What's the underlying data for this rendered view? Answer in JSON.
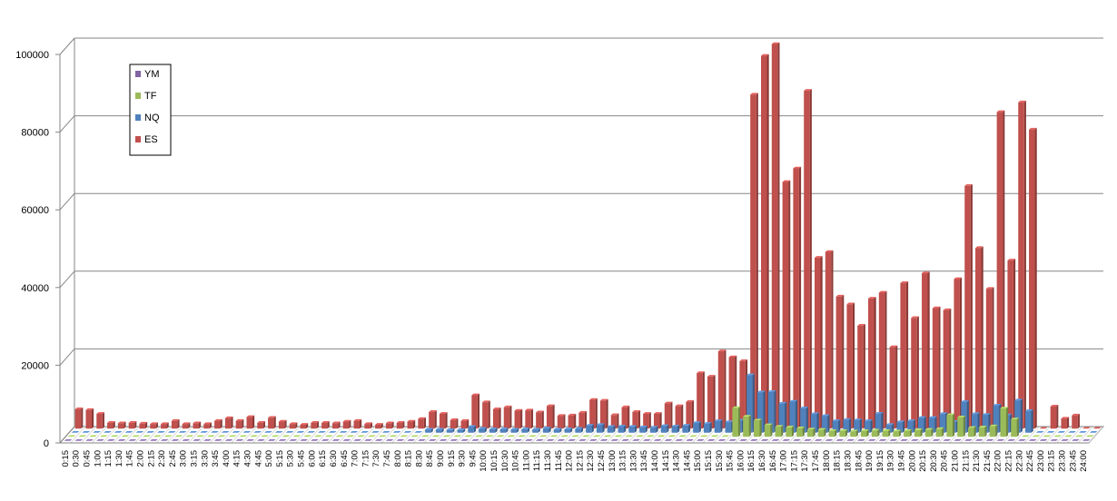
{
  "chart_data": {
    "type": "bar",
    "title": "",
    "xlabel": "",
    "ylabel": "",
    "ylim": [
      0,
      100000
    ],
    "yticks": [
      0,
      20000,
      40000,
      60000,
      80000,
      100000
    ],
    "grid": true,
    "legend_position": "top-left",
    "categories": [
      "0:15",
      "0:30",
      "0:45",
      "1:00",
      "1:15",
      "1:30",
      "1:45",
      "2:00",
      "2:15",
      "2:30",
      "2:45",
      "3:00",
      "3:15",
      "3:30",
      "3:45",
      "4:00",
      "4:15",
      "4:30",
      "4:45",
      "5:00",
      "5:15",
      "5:30",
      "5:45",
      "6:00",
      "6:15",
      "6:30",
      "6:45",
      "7:00",
      "7:15",
      "7:30",
      "7:45",
      "8:00",
      "8:15",
      "8:30",
      "8:45",
      "9:00",
      "9:15",
      "9:30",
      "9:45",
      "10:00",
      "10:15",
      "10:30",
      "10:45",
      "11:00",
      "11:15",
      "11:30",
      "11:45",
      "12:00",
      "12:15",
      "12:30",
      "12:45",
      "13:00",
      "13:15",
      "13:30",
      "13:45",
      "14:00",
      "14:15",
      "14:30",
      "14:45",
      "15:00",
      "15:15",
      "15:30",
      "15:45",
      "16:00",
      "16:15",
      "16:30",
      "16:45",
      "17:00",
      "17:15",
      "17:30",
      "17:45",
      "18:00",
      "18:15",
      "18:30",
      "18:45",
      "19:00",
      "19:15",
      "19:30",
      "19:45",
      "20:00",
      "20:15",
      "20:30",
      "20:45",
      "21:00",
      "21:15",
      "21:30",
      "21:45",
      "22:00",
      "22:15",
      "22:30",
      "22:45",
      "23:00",
      "23:15",
      "23:30",
      "23:45",
      "24:00"
    ],
    "series": [
      {
        "name": "ES",
        "color": "#c0504d",
        "values": [
          5000,
          4800,
          3800,
          1500,
          1400,
          1500,
          1300,
          1200,
          1200,
          2000,
          1200,
          1400,
          1200,
          2000,
          2700,
          2000,
          3000,
          1500,
          2800,
          1800,
          1200,
          1000,
          1500,
          1500,
          1400,
          1800,
          2000,
          1200,
          1000,
          1400,
          1500,
          1800,
          2500,
          4300,
          3800,
          2200,
          2000,
          8600,
          6800,
          5000,
          5500,
          4600,
          4700,
          4200,
          5800,
          3300,
          3400,
          4100,
          7400,
          7200,
          3500,
          5500,
          4300,
          3800,
          3800,
          6500,
          5800,
          6900,
          14300,
          13400,
          19900,
          18400,
          17400,
          86000,
          96000,
          99000,
          63500,
          67000,
          87000,
          44000,
          45500,
          34000,
          32000,
          26500,
          33500,
          35000,
          21000,
          37500,
          28500,
          40000,
          31000,
          30500,
          38500,
          62500,
          46500,
          36000,
          81500,
          43300,
          84000,
          77000,
          0,
          5700,
          2600,
          3400,
          0,
          0
        ]
      },
      {
        "name": "NQ",
        "color": "#4f81bd",
        "values": [
          0,
          0,
          0,
          0,
          0,
          0,
          0,
          0,
          0,
          0,
          0,
          0,
          0,
          0,
          0,
          0,
          0,
          0,
          0,
          0,
          0,
          0,
          0,
          0,
          0,
          0,
          0,
          0,
          0,
          0,
          0,
          0,
          0,
          800,
          800,
          700,
          700,
          1500,
          1000,
          900,
          900,
          800,
          900,
          800,
          1100,
          800,
          900,
          1000,
          1800,
          2000,
          1500,
          1600,
          1500,
          1400,
          1300,
          1700,
          1600,
          1800,
          2500,
          2300,
          3000,
          2700,
          3100,
          14800,
          10400,
          10500,
          7500,
          8000,
          6300,
          4800,
          4300,
          3000,
          3300,
          3200,
          3000,
          4900,
          2000,
          2700,
          3000,
          3800,
          3800,
          4800,
          2800,
          7900,
          4800,
          4600,
          7000,
          4500,
          8300,
          5600,
          0,
          0,
          0,
          0,
          0,
          0
        ]
      },
      {
        "name": "TF",
        "color": "#9bbb59",
        "values": [
          0,
          0,
          0,
          0,
          0,
          0,
          0,
          0,
          0,
          0,
          0,
          0,
          0,
          0,
          0,
          0,
          0,
          0,
          0,
          0,
          0,
          0,
          0,
          0,
          0,
          0,
          0,
          0,
          0,
          0,
          0,
          0,
          0,
          0,
          0,
          0,
          0,
          0,
          0,
          0,
          0,
          0,
          0,
          0,
          0,
          0,
          0,
          0,
          0,
          0,
          0,
          0,
          0,
          0,
          0,
          0,
          0,
          0,
          0,
          0,
          0,
          0,
          7400,
          5200,
          4200,
          3000,
          2600,
          2400,
          2200,
          1900,
          1800,
          1500,
          1500,
          1400,
          1500,
          1600,
          1500,
          1400,
          1500,
          1700,
          1800,
          2000,
          5600,
          5000,
          2300,
          2400,
          2700,
          7300,
          4500,
          0,
          0,
          0,
          0,
          0,
          0,
          0
        ]
      },
      {
        "name": "YM",
        "color": "#8064a2",
        "values": [
          0,
          0,
          0,
          0,
          0,
          0,
          0,
          0,
          0,
          0,
          0,
          0,
          0,
          0,
          0,
          0,
          0,
          0,
          0,
          0,
          0,
          0,
          0,
          0,
          0,
          0,
          0,
          0,
          0,
          0,
          0,
          0,
          0,
          0,
          0,
          0,
          0,
          0,
          0,
          0,
          0,
          0,
          0,
          0,
          0,
          0,
          0,
          0,
          0,
          0,
          0,
          0,
          0,
          0,
          0,
          0,
          0,
          0,
          0,
          0,
          0,
          0,
          0,
          0,
          0,
          0,
          0,
          0,
          0,
          0,
          0,
          0,
          0,
          0,
          0,
          0,
          0,
          0,
          0,
          0,
          0,
          0,
          0,
          0,
          0,
          0,
          0,
          0,
          0,
          0,
          0,
          0,
          0,
          0,
          0,
          0
        ]
      }
    ],
    "legend": [
      "YM",
      "TF",
      "NQ",
      "ES"
    ]
  }
}
